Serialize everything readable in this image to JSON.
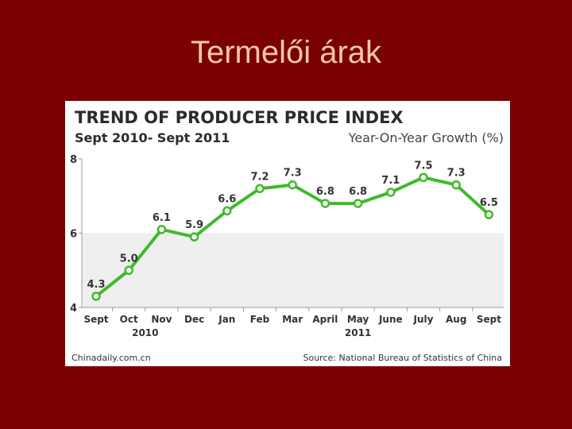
{
  "slide": {
    "title": "Termelői árak"
  },
  "footer": {
    "source_left": "Chinadaily.com.cn",
    "source_right": "Source: National Bureau of Statistics of China"
  },
  "colors": {
    "background": "#7b0000",
    "title": "#f2c7a6",
    "line": "#3fba2a",
    "shade": "#efefef"
  },
  "chart_data": {
    "type": "line",
    "title": "TREND OF PRODUCER PRICE INDEX",
    "subtitle": "Sept 2010- Sept 2011",
    "unit_label": "Year-On-Year Growth (%)",
    "categories": [
      "Sept",
      "Oct",
      "Nov",
      "Dec",
      "Jan",
      "Feb",
      "Mar",
      "April",
      "May",
      "June",
      "July",
      "Aug",
      "Sept"
    ],
    "year_labels": [
      {
        "label": "2010",
        "index": 1.5
      },
      {
        "label": "2011",
        "index": 8
      }
    ],
    "values": [
      4.3,
      5.0,
      6.1,
      5.9,
      6.6,
      7.2,
      7.3,
      6.8,
      6.8,
      7.1,
      7.5,
      7.3,
      6.5
    ],
    "value_labels": [
      "4.3",
      "5.0",
      "6.1",
      "5.9",
      "6.6",
      "7.2",
      "7.3",
      "6.8",
      "6.8",
      "7.1",
      "7.5",
      "7.3",
      "6.5"
    ],
    "ylim": [
      4,
      8
    ],
    "yticks": [
      {
        "value": 4,
        "label": "4"
      },
      {
        "value": 6,
        "label": "6"
      },
      {
        "value": 8,
        "label": "8"
      }
    ],
    "shaded_band": [
      4,
      6
    ],
    "grid": false
  }
}
